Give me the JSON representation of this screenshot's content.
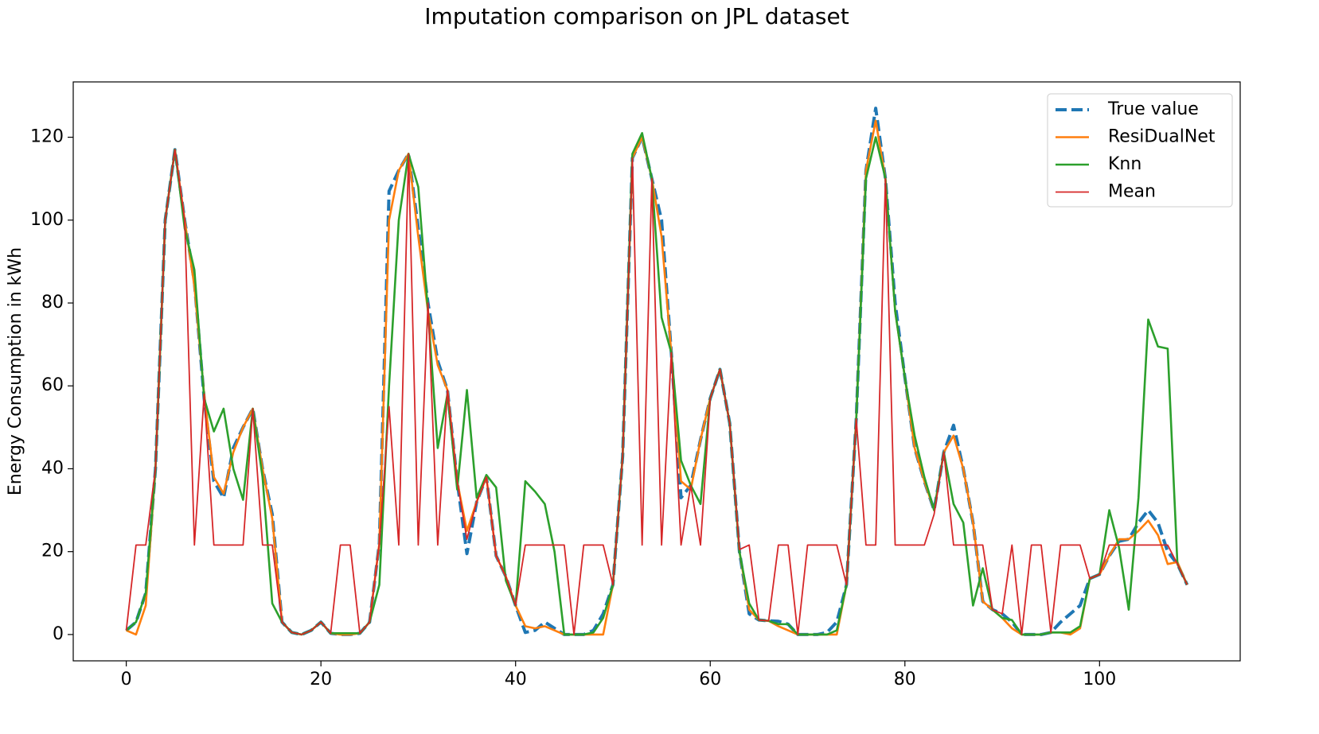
{
  "chart_data": {
    "type": "line",
    "title": "Imputation comparison on JPL dataset",
    "ylabel": "Energy Consumption in kWh",
    "x": [
      0,
      1,
      2,
      3,
      4,
      5,
      6,
      7,
      8,
      9,
      10,
      11,
      12,
      13,
      14,
      15,
      16,
      17,
      18,
      19,
      20,
      21,
      22,
      23,
      24,
      25,
      26,
      27,
      28,
      29,
      30,
      31,
      32,
      33,
      34,
      35,
      36,
      37,
      38,
      39,
      40,
      41,
      42,
      43,
      44,
      45,
      46,
      47,
      48,
      49,
      50,
      51,
      52,
      53,
      54,
      55,
      56,
      57,
      58,
      59,
      60,
      61,
      62,
      63,
      64,
      65,
      66,
      67,
      68,
      69,
      70,
      71,
      72,
      73,
      74,
      75,
      76,
      77,
      78,
      79,
      80,
      81,
      82,
      83,
      84,
      85,
      86,
      87,
      88,
      89,
      90,
      91,
      92,
      93,
      94,
      95,
      96,
      97,
      98,
      99,
      100,
      101,
      102,
      103,
      104,
      105,
      106,
      107,
      108,
      109
    ],
    "series": [
      {
        "name": "True value",
        "color": "#1f77b4",
        "linestyle": "dashed",
        "values": [
          1,
          3,
          10,
          40,
          100,
          117,
          100,
          85,
          57,
          37,
          33,
          45,
          50,
          54.5,
          40,
          29,
          3,
          0.5,
          0,
          1,
          3,
          0.3,
          0,
          0,
          0.3,
          3,
          22,
          107,
          112,
          116,
          98,
          80,
          66,
          59,
          37,
          19.5,
          32,
          38,
          19,
          14,
          7,
          0.5,
          1,
          3,
          1.5,
          0,
          0,
          0,
          1,
          5,
          12,
          43,
          115,
          120,
          110,
          100,
          68,
          33,
          36,
          47,
          57,
          64,
          51,
          20,
          5,
          3.5,
          3.3,
          3.2,
          2.5,
          0,
          0,
          0,
          0.5,
          3,
          12,
          52,
          112,
          127,
          110,
          80,
          62,
          45,
          37,
          30,
          44,
          50.5,
          40,
          27,
          8,
          6,
          5,
          3,
          0,
          0,
          0,
          0.5,
          3,
          5,
          7,
          13.5,
          14.5,
          19,
          22.5,
          23,
          27,
          30,
          27,
          20,
          17,
          12
        ]
      },
      {
        "name": "ResiDualNet",
        "color": "#ff7f0e",
        "linestyle": "solid",
        "values": [
          1,
          0,
          7,
          40,
          100,
          117,
          100,
          84,
          58,
          38,
          34,
          44,
          50,
          54.5,
          40,
          28,
          3,
          0.5,
          0,
          1,
          3,
          0.3,
          0,
          0,
          0.3,
          3,
          22,
          100,
          112,
          116,
          96,
          78,
          65,
          59,
          37,
          25,
          32,
          38,
          19,
          14,
          7,
          2,
          1.5,
          2,
          1,
          0,
          0,
          0,
          0,
          0,
          12,
          43,
          115,
          120,
          110,
          96,
          68,
          37,
          35,
          47,
          57,
          64,
          51,
          20,
          6,
          3.5,
          3.3,
          2,
          1,
          0,
          0,
          0,
          0,
          0,
          12,
          52,
          112,
          124,
          110,
          78,
          62,
          45,
          37,
          30,
          44,
          48,
          40,
          27,
          8,
          6,
          4,
          1.5,
          0,
          0,
          0,
          0.5,
          0.5,
          0,
          1.5,
          13.5,
          14.5,
          19,
          23,
          23,
          25,
          27.5,
          24,
          17,
          17.5,
          12
        ]
      },
      {
        "name": "Knn",
        "color": "#2ca02c",
        "linestyle": "solid",
        "values": [
          1,
          3,
          10,
          40,
          100,
          117,
          98,
          88,
          57,
          49,
          54.5,
          40,
          32.5,
          54.5,
          38,
          7.5,
          3,
          0.5,
          0,
          1,
          3,
          0.3,
          0.3,
          0.3,
          0.3,
          3,
          12,
          60,
          100,
          116,
          108,
          78,
          45,
          58,
          35,
          59,
          33,
          38.5,
          35.5,
          13,
          7,
          37,
          34.5,
          31.5,
          20,
          0,
          0,
          0,
          0.5,
          4,
          12,
          43,
          116,
          121,
          110,
          76.5,
          68,
          42,
          36,
          31.5,
          57,
          64,
          51,
          20,
          7.5,
          3.5,
          3.3,
          2.5,
          2.5,
          0,
          0,
          0,
          0,
          1,
          12,
          52,
          110,
          120,
          110,
          78,
          62,
          48,
          38,
          30,
          44,
          31.5,
          27,
          7,
          16,
          6,
          4,
          3.5,
          0,
          0,
          0,
          0.5,
          0.5,
          0.5,
          2,
          13.5,
          14.5,
          30,
          21,
          6,
          33,
          76,
          69.5,
          69,
          17,
          12
        ]
      },
      {
        "name": "Mean",
        "color": "#d62728",
        "linestyle": "thin",
        "values": [
          1,
          21.6,
          21.6,
          40,
          100,
          117,
          100,
          21.6,
          58,
          21.6,
          21.6,
          21.6,
          21.6,
          54.5,
          21.6,
          21.6,
          3,
          0.5,
          0,
          1,
          3,
          0.3,
          21.6,
          21.6,
          0.3,
          3,
          22,
          55,
          21.6,
          116,
          21.6,
          80,
          21.6,
          59,
          37,
          23,
          32,
          38,
          19,
          14,
          7,
          21.6,
          21.6,
          21.6,
          21.6,
          21.6,
          0,
          21.6,
          21.6,
          21.6,
          12,
          43,
          115,
          21.6,
          110,
          21.6,
          68,
          21.6,
          36,
          21.6,
          57,
          64,
          51,
          20.5,
          21.6,
          3.5,
          3.3,
          21.6,
          21.6,
          0,
          21.6,
          21.6,
          21.6,
          21.6,
          12,
          52,
          21.6,
          21.6,
          110,
          21.6,
          21.6,
          21.6,
          21.6,
          29,
          44,
          21.6,
          21.6,
          21.6,
          21.6,
          6,
          5,
          21.6,
          0,
          21.6,
          21.6,
          0.5,
          21.6,
          21.6,
          21.6,
          13.5,
          14.5,
          21.6,
          21.6,
          21.6,
          21.6,
          21.6,
          21.6,
          21.6,
          17,
          12
        ]
      }
    ],
    "xlim": [
      -5.45,
      114.45
    ],
    "ylim": [
      -6.35,
      133.35
    ],
    "xticks": [
      0,
      20,
      40,
      60,
      80,
      100
    ],
    "yticks": [
      0,
      20,
      40,
      60,
      80,
      100,
      120
    ],
    "grid": false,
    "legend": "upper right"
  }
}
